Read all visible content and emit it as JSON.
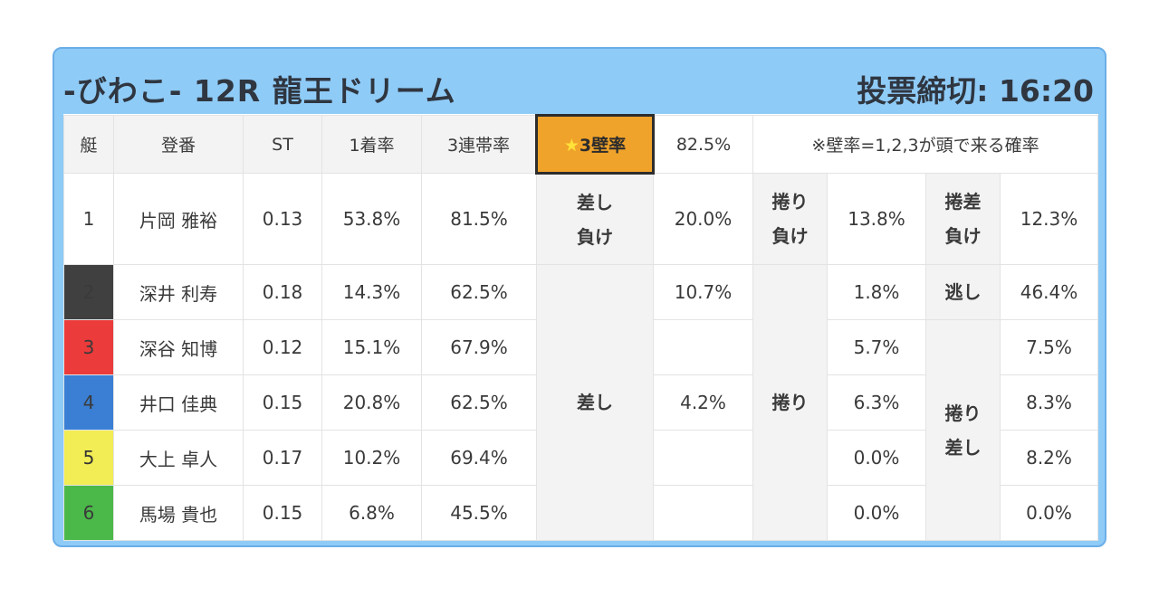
{
  "header": {
    "title": "-びわこ- 12R 龍王ドリーム",
    "deadline": "投票締切: 16:20"
  },
  "columns": {
    "boat": "艇",
    "name": "登番",
    "st": "ST",
    "rate1": "1着率",
    "rate3": "3連帯率",
    "wall_label": "3壁率",
    "wall_star": "★",
    "wall_value": "82.5%",
    "note": "※壁率=1,2,3が頭で来る確率"
  },
  "rows": [
    {
      "boat": "1",
      "name": "片岡 雅裕",
      "st": "0.13",
      "rate1": "53.8%",
      "rate3": "81.5%"
    },
    {
      "boat": "2",
      "name": "深井 利寿",
      "st": "0.18",
      "rate1": "14.3%",
      "rate3": "62.5%"
    },
    {
      "boat": "3",
      "name": "深谷 知博",
      "st": "0.12",
      "rate1": "15.1%",
      "rate3": "67.9%"
    },
    {
      "boat": "4",
      "name": "井口 佳典",
      "st": "0.15",
      "rate1": "20.8%",
      "rate3": "62.5%"
    },
    {
      "boat": "5",
      "name": "大上 卓人",
      "st": "0.17",
      "rate1": "10.2%",
      "rate3": "69.4%"
    },
    {
      "boat": "6",
      "name": "馬場 貴也",
      "st": "0.15",
      "rate1": "6.8%",
      "rate3": "45.5%"
    }
  ],
  "kimarite": {
    "sashi_make": {
      "line1": "差し",
      "line2": "負け",
      "value": "20.0%"
    },
    "makuri_make": {
      "line1": "捲り",
      "line2": "負け",
      "value": "13.8%"
    },
    "makurisashi_make": {
      "line1": "捲差",
      "line2": "負け",
      "value": "12.3%"
    },
    "sashi": {
      "label": "差し",
      "values": [
        "10.7%",
        "",
        "4.2%",
        "",
        ""
      ]
    },
    "makuri": {
      "label": "捲り",
      "values": [
        "1.8%",
        "5.7%",
        "6.3%",
        "0.0%",
        "0.0%"
      ]
    },
    "nige": {
      "label": "逃し",
      "value": "46.4%"
    },
    "makurisashi": {
      "line1": "捲り",
      "line2": "差し",
      "values": [
        "7.5%",
        "8.3%",
        "8.2%",
        "0.0%"
      ]
    }
  }
}
